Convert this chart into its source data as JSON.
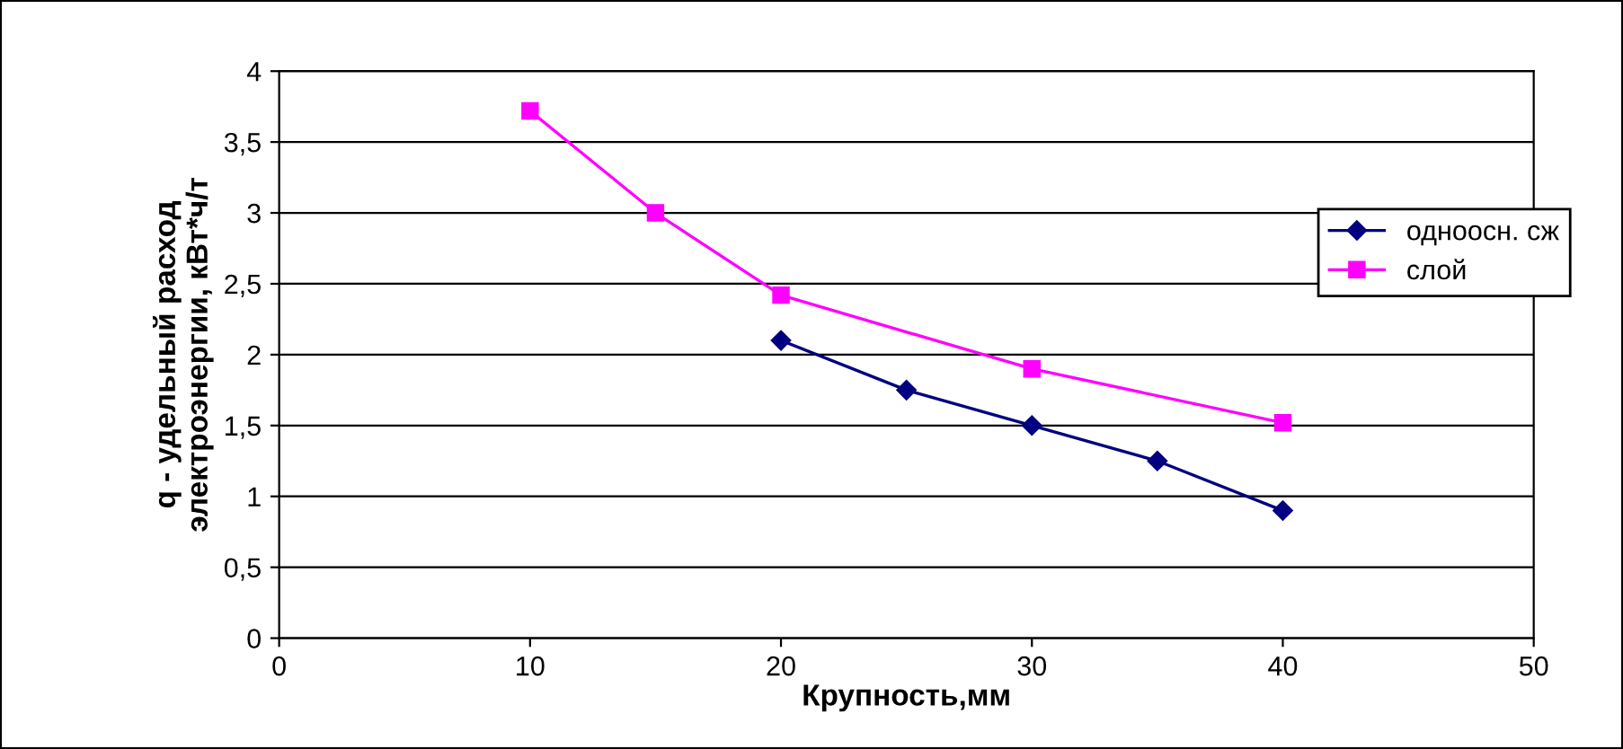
{
  "chart_data": {
    "type": "line",
    "xlabel": "Крупность,мм",
    "ylabel": "q - удельный расход\nэлектроэнергии, кВт*ч/т",
    "series": [
      {
        "name": "одноосн. сж",
        "color": "#000080",
        "marker": "diamond",
        "x": [
          20,
          25,
          30,
          35,
          40
        ],
        "values": [
          2.1,
          1.75,
          1.5,
          1.25,
          0.9
        ]
      },
      {
        "name": "слой",
        "color": "#ff00ff",
        "marker": "square",
        "x": [
          10,
          15,
          20,
          30,
          40
        ],
        "values": [
          3.72,
          3.0,
          2.42,
          1.9,
          1.52
        ]
      }
    ],
    "xlim": [
      0,
      50
    ],
    "xticks": [
      0,
      10,
      20,
      30,
      40,
      50
    ],
    "ylim": [
      0,
      4
    ],
    "yticks": [
      0,
      {
        "value": 0.5,
        "label": "0,5"
      },
      1,
      {
        "value": 1.5,
        "label": "1,5"
      },
      2,
      {
        "value": 2.5,
        "label": "2,5"
      },
      3,
      {
        "value": 3.5,
        "label": "3,5"
      },
      4
    ],
    "grid": "y",
    "legend": "right",
    "line_style": "solid"
  }
}
